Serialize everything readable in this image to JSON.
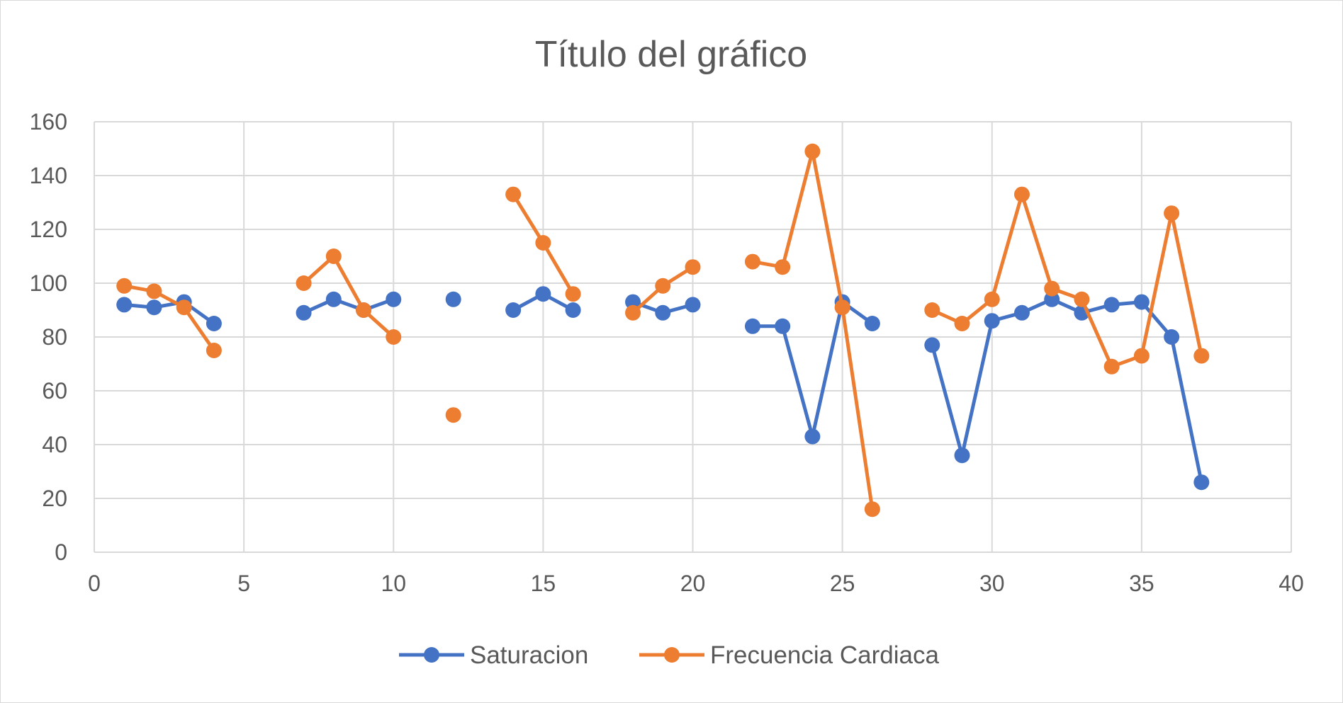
{
  "chart_data": {
    "type": "scatter",
    "title": "Título del gráfico",
    "xlim": [
      0,
      40
    ],
    "ylim": [
      0,
      160
    ],
    "x_ticks": [
      0,
      5,
      10,
      15,
      20,
      25,
      30,
      35,
      40
    ],
    "y_ticks": [
      0,
      20,
      40,
      60,
      80,
      100,
      120,
      140,
      160
    ],
    "grid": true,
    "legend_position": "bottom",
    "series": [
      {
        "name": "Saturacion",
        "color": "#4472C4",
        "points": [
          [
            1,
            92
          ],
          [
            2,
            91
          ],
          [
            3,
            93
          ],
          [
            4,
            85
          ],
          [
            5,
            null
          ],
          [
            6,
            null
          ],
          [
            7,
            89
          ],
          [
            8,
            94
          ],
          [
            9,
            90
          ],
          [
            10,
            94
          ],
          [
            11,
            null
          ],
          [
            12,
            94
          ],
          [
            13,
            null
          ],
          [
            14,
            90
          ],
          [
            15,
            96
          ],
          [
            16,
            90
          ],
          [
            17,
            null
          ],
          [
            18,
            93
          ],
          [
            19,
            89
          ],
          [
            20,
            92
          ],
          [
            21,
            null
          ],
          [
            22,
            84
          ],
          [
            23,
            84
          ],
          [
            24,
            43
          ],
          [
            25,
            93
          ],
          [
            26,
            85
          ],
          [
            27,
            null
          ],
          [
            28,
            77
          ],
          [
            29,
            36
          ],
          [
            30,
            86
          ],
          [
            31,
            89
          ],
          [
            32,
            94
          ],
          [
            33,
            89
          ],
          [
            34,
            92
          ],
          [
            35,
            93
          ],
          [
            36,
            80
          ],
          [
            37,
            26
          ]
        ]
      },
      {
        "name": "Frecuencia Cardiaca",
        "color": "#ED7D31",
        "points": [
          [
            1,
            99
          ],
          [
            2,
            97
          ],
          [
            3,
            91
          ],
          [
            4,
            75
          ],
          [
            5,
            null
          ],
          [
            6,
            null
          ],
          [
            7,
            100
          ],
          [
            8,
            110
          ],
          [
            9,
            90
          ],
          [
            10,
            80
          ],
          [
            11,
            null
          ],
          [
            12,
            51
          ],
          [
            13,
            null
          ],
          [
            14,
            133
          ],
          [
            15,
            115
          ],
          [
            16,
            96
          ],
          [
            17,
            null
          ],
          [
            18,
            89
          ],
          [
            19,
            99
          ],
          [
            20,
            106
          ],
          [
            21,
            null
          ],
          [
            22,
            108
          ],
          [
            23,
            106
          ],
          [
            24,
            149
          ],
          [
            25,
            91
          ],
          [
            26,
            16
          ],
          [
            27,
            null
          ],
          [
            28,
            90
          ],
          [
            29,
            85
          ],
          [
            30,
            94
          ],
          [
            31,
            133
          ],
          [
            32,
            98
          ],
          [
            33,
            94
          ],
          [
            34,
            69
          ],
          [
            35,
            73
          ],
          [
            36,
            126
          ],
          [
            37,
            73
          ]
        ]
      }
    ]
  }
}
